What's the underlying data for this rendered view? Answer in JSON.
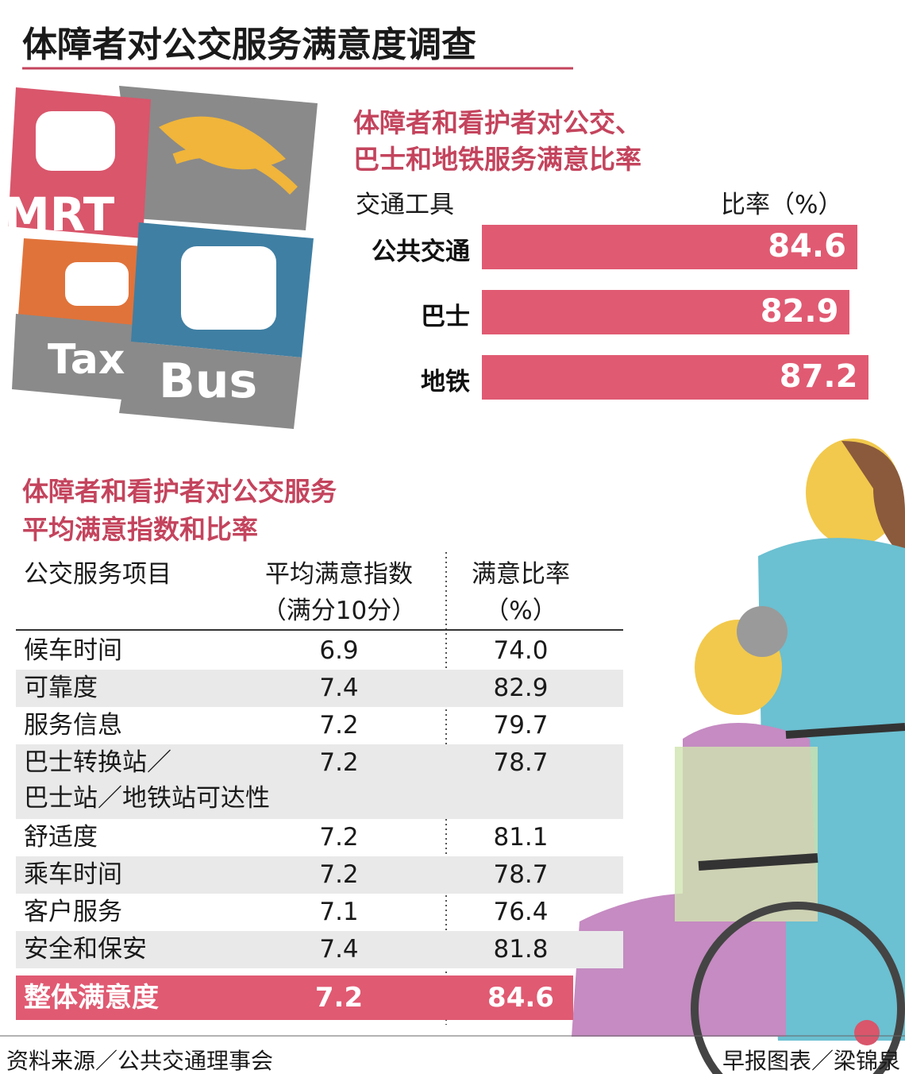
{
  "title": "体障者对公交服务满意度调查",
  "chart_data": {
    "type": "bar",
    "orientation": "horizontal",
    "title": [
      "体障者和看护者对公交、",
      "巴士和地铁服务满意比率"
    ],
    "category_header": "交通工具",
    "value_header": "比率（%）",
    "categories": [
      "公共交通",
      "巴士",
      "地铁"
    ],
    "values": [
      84.6,
      82.9,
      87.2
    ],
    "color": "#e05a72"
  },
  "table": {
    "title": [
      "体障者和看护者对公交服务",
      "平均满意指数和比率"
    ],
    "header": [
      [
        "公交服务项目"
      ],
      [
        "平均满意指数",
        "（满分10分）"
      ],
      [
        "满意比率",
        "（%）"
      ]
    ],
    "rows": [
      [
        [
          "候车时间"
        ],
        "6.9",
        "74.0"
      ],
      [
        [
          "可靠度"
        ],
        "7.4",
        "82.9"
      ],
      [
        [
          "服务信息"
        ],
        "7.2",
        "79.7"
      ],
      [
        [
          "巴士转换站／",
          "巴士站／地铁站可达性"
        ],
        "7.2",
        "78.7"
      ],
      [
        [
          "舒适度"
        ],
        "7.2",
        "81.1"
      ],
      [
        [
          "乘车时间"
        ],
        "7.2",
        "78.7"
      ],
      [
        [
          "客户服务"
        ],
        "7.1",
        "76.4"
      ],
      [
        [
          "安全和保安"
        ],
        "7.4",
        "81.8"
      ]
    ],
    "total": [
      "整体满意度",
      "7.2",
      "84.6"
    ]
  },
  "footer": {
    "source": "资料来源／公共交通理事会",
    "credit": "早报图表／梁锦泉"
  }
}
